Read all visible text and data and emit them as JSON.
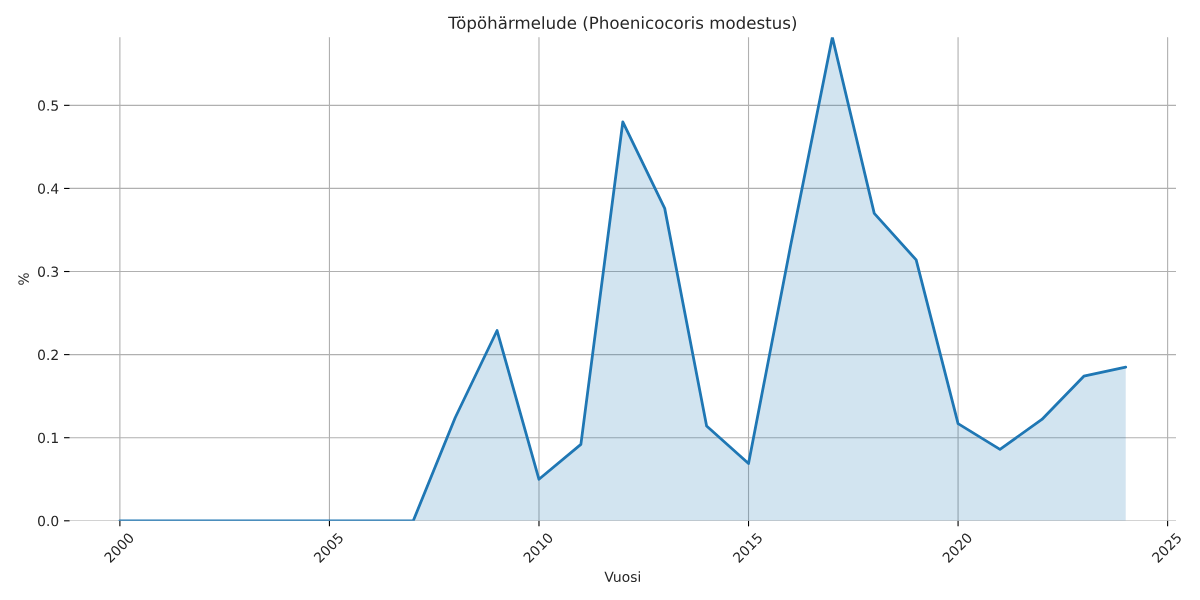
{
  "chart_data": {
    "type": "area",
    "title": "Töpöhärmelude (Phoenicocoris modestus)",
    "xlabel": "Vuosi",
    "ylabel": "%",
    "x": [
      2000,
      2001,
      2002,
      2003,
      2004,
      2005,
      2006,
      2007,
      2008,
      2009,
      2010,
      2011,
      2012,
      2013,
      2014,
      2015,
      2016,
      2017,
      2018,
      2019,
      2020,
      2021,
      2022,
      2023,
      2024
    ],
    "series": [
      {
        "color": "#1f77b4",
        "values": [
          0,
          0,
          0,
          0,
          0,
          0,
          0,
          0,
          0.124,
          0.229,
          0.05,
          0.092,
          0.48,
          0.376,
          0.114,
          0.069,
          0.33,
          0.582,
          0.37,
          0.314,
          0.117,
          0.086,
          0.122,
          0.174,
          0.185
        ]
      }
    ],
    "xlim": [
      1998.8,
      2025.2
    ],
    "xticks": [
      2000,
      2005,
      2010,
      2015,
      2020,
      2025
    ],
    "ylim": [
      0,
      0.582
    ],
    "yticks": [
      {
        "value": 0,
        "label": "0.0"
      },
      0.1,
      0.2,
      0.3,
      0.4,
      0.5
    ],
    "grid": true
  }
}
